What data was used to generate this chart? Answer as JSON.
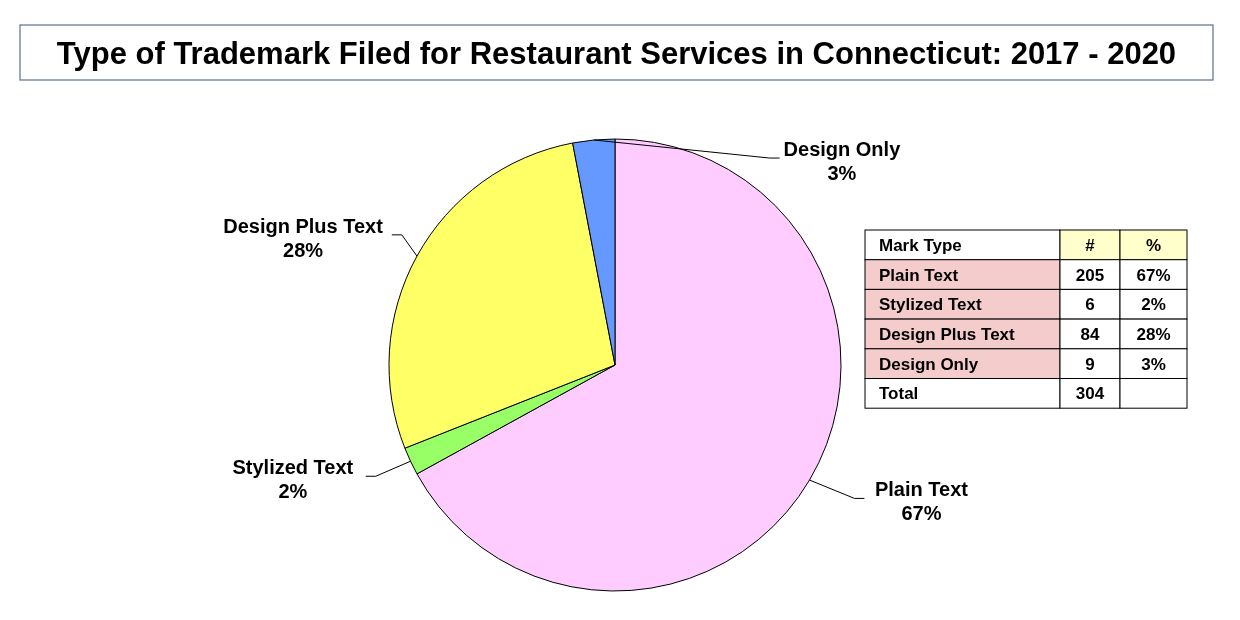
{
  "chart_data": [
    {
      "type": "pie",
      "title": "Type of Trademark Filed for Restaurant Services in Connecticut: 2017 - 2020",
      "categories": [
        "Plain Text",
        "Stylized Text",
        "Design Plus Text",
        "Design Only"
      ],
      "values": [
        67,
        2,
        28,
        3
      ],
      "colors": [
        "#ffccff",
        "#99ff66",
        "#ffff66",
        "#6699ff"
      ],
      "value_labels": [
        "67%",
        "2%",
        "28%",
        "3%"
      ]
    },
    {
      "type": "other",
      "categories": [
        "Plain Text",
        "Stylized Text",
        "Design Plus Text",
        "Design Only"
      ],
      "values": [
        205,
        6,
        84,
        9
      ],
      "data_labels": true,
      "totals": [
        "304"
      ],
      "annotations": [
        "Mark Type",
        "#",
        "%",
        "Total"
      ]
    }
  ]
}
